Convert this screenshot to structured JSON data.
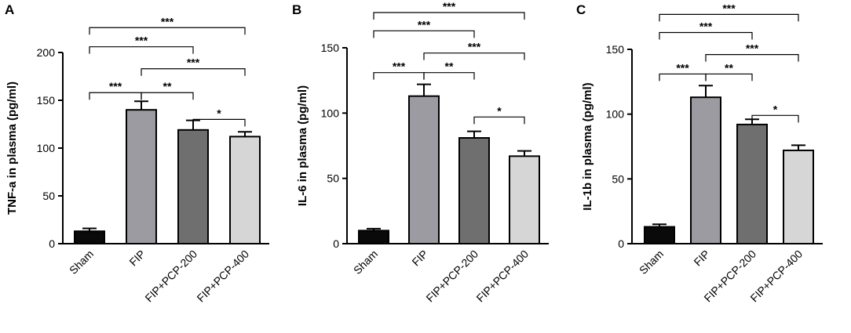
{
  "chart_data": [
    {
      "type": "bar",
      "panel_label": "A",
      "ylabel": "TNF-a in plasma (pg/ml)",
      "categories": [
        "Sham",
        "FIP",
        "FIP+PCP-200",
        "FIP+PCP-400"
      ],
      "values": [
        13,
        140,
        119,
        112
      ],
      "errors": [
        3,
        9,
        10,
        5
      ],
      "colors": [
        "#0a0a0a",
        "#9b9ba1",
        "#6f6f6f",
        "#d6d6d6"
      ],
      "ylim": [
        0,
        200
      ],
      "yticks": [
        "0",
        "50",
        "100",
        "150",
        "200"
      ],
      "yticks_values": [
        0,
        50,
        100,
        150,
        200
      ],
      "comparisons": [
        {
          "from": 0,
          "to": 1,
          "y": 158,
          "label": "***"
        },
        {
          "from": 1,
          "to": 2,
          "y": 158,
          "label": "**"
        },
        {
          "from": 2,
          "to": 3,
          "y": 130,
          "label": "*"
        },
        {
          "from": 1,
          "to": 3,
          "y": 183,
          "label": "***"
        },
        {
          "from": 0,
          "to": 2,
          "y": 206,
          "label": "***"
        },
        {
          "from": 0,
          "to": 3,
          "y": 226,
          "label": "***"
        }
      ]
    },
    {
      "type": "bar",
      "panel_label": "B",
      "ylabel": "IL-6 in plasma (pg/ml)",
      "categories": [
        "Sham",
        "FIP",
        "FIP+PCP-200",
        "FIP+PCP-400"
      ],
      "values": [
        10,
        113,
        81,
        67
      ],
      "errors": [
        1.5,
        9,
        5,
        4
      ],
      "colors": [
        "#0a0a0a",
        "#9b9ba1",
        "#6f6f6f",
        "#d6d6d6"
      ],
      "ylim": [
        0,
        150
      ],
      "yticks": [
        "0",
        "50",
        "100",
        "150"
      ],
      "yticks_values": [
        0,
        50,
        100,
        150
      ],
      "comparisons": [
        {
          "from": 0,
          "to": 1,
          "y": 131,
          "label": "***"
        },
        {
          "from": 1,
          "to": 2,
          "y": 131,
          "label": "**"
        },
        {
          "from": 2,
          "to": 3,
          "y": 97,
          "label": "*"
        },
        {
          "from": 1,
          "to": 3,
          "y": 146,
          "label": "***"
        },
        {
          "from": 0,
          "to": 2,
          "y": 163,
          "label": "***"
        },
        {
          "from": 0,
          "to": 3,
          "y": 177,
          "label": "***"
        }
      ]
    },
    {
      "type": "bar",
      "panel_label": "C",
      "ylabel": "IL-1b in plasma (pg/ml)",
      "categories": [
        "Sham",
        "FIP",
        "FIP+PCP-200",
        "FIP+PCP-400"
      ],
      "values": [
        13,
        113,
        92,
        72
      ],
      "errors": [
        2,
        9,
        4,
        4
      ],
      "colors": [
        "#0a0a0a",
        "#9b9ba1",
        "#6f6f6f",
        "#d6d6d6"
      ],
      "ylim": [
        0,
        150
      ],
      "yticks": [
        "0",
        "50",
        "100",
        "150"
      ],
      "yticks_values": [
        0,
        50,
        100,
        150
      ],
      "comparisons": [
        {
          "from": 0,
          "to": 1,
          "y": 131,
          "label": "***"
        },
        {
          "from": 1,
          "to": 2,
          "y": 131,
          "label": "**"
        },
        {
          "from": 2,
          "to": 3,
          "y": 99,
          "label": "*"
        },
        {
          "from": 1,
          "to": 3,
          "y": 146,
          "label": "***"
        },
        {
          "from": 0,
          "to": 2,
          "y": 163,
          "label": "***"
        },
        {
          "from": 0,
          "to": 3,
          "y": 177,
          "label": "***"
        }
      ]
    }
  ]
}
